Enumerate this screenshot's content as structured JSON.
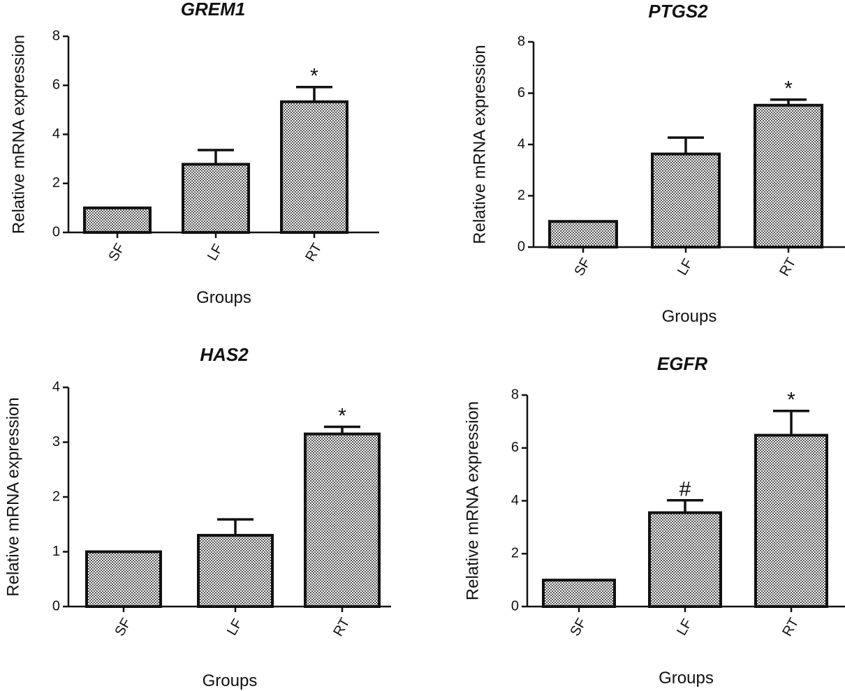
{
  "chart_data": [
    {
      "type": "bar",
      "title": "GREM1",
      "xlabel": "Groups",
      "ylabel": "Relative mRNA expression",
      "categories": [
        "SF",
        "LF",
        "RT"
      ],
      "values": [
        1.0,
        2.78,
        5.33
      ],
      "error": [
        0,
        0.58,
        0.6
      ],
      "annotations": [
        "",
        "",
        "*"
      ],
      "yticks": [
        "0",
        "2",
        "4",
        "6",
        "8"
      ],
      "ylim": [
        0,
        8
      ],
      "grid": false,
      "bar_fill": "checkered gray"
    },
    {
      "type": "bar",
      "title": "PTGS2",
      "xlabel": "Groups",
      "ylabel": "Relative mRNA expression",
      "categories": [
        "SF",
        "LF",
        "RT"
      ],
      "values": [
        1.0,
        3.63,
        5.53
      ],
      "error": [
        0,
        0.64,
        0.22
      ],
      "annotations": [
        "",
        "",
        "*"
      ],
      "yticks": [
        "0",
        "2",
        "4",
        "6",
        "8"
      ],
      "ylim": [
        0,
        8
      ],
      "grid": false,
      "bar_fill": "checkered gray"
    },
    {
      "type": "bar",
      "title": "HAS2",
      "xlabel": "Groups",
      "ylabel": "Relative mRNA expression",
      "categories": [
        "SF",
        "LF",
        "RT"
      ],
      "values": [
        1.0,
        1.3,
        3.15
      ],
      "error": [
        0,
        0.29,
        0.13
      ],
      "annotations": [
        "",
        "",
        "*"
      ],
      "yticks": [
        "0",
        "1",
        "2",
        "3",
        "4"
      ],
      "ylim": [
        0,
        4
      ],
      "grid": false,
      "bar_fill": "checkered gray"
    },
    {
      "type": "bar",
      "title": "EGFR",
      "xlabel": "Groups",
      "ylabel": "Relative mRNA expression",
      "categories": [
        "SF",
        "LF",
        "RT"
      ],
      "values": [
        1.0,
        3.55,
        6.48
      ],
      "error": [
        0,
        0.47,
        0.92
      ],
      "annotations": [
        "",
        "#",
        "*"
      ],
      "yticks": [
        "0",
        "2",
        "4",
        "6",
        "8"
      ],
      "ylim": [
        0,
        8
      ],
      "grid": false,
      "bar_fill": "checkered gray"
    }
  ]
}
